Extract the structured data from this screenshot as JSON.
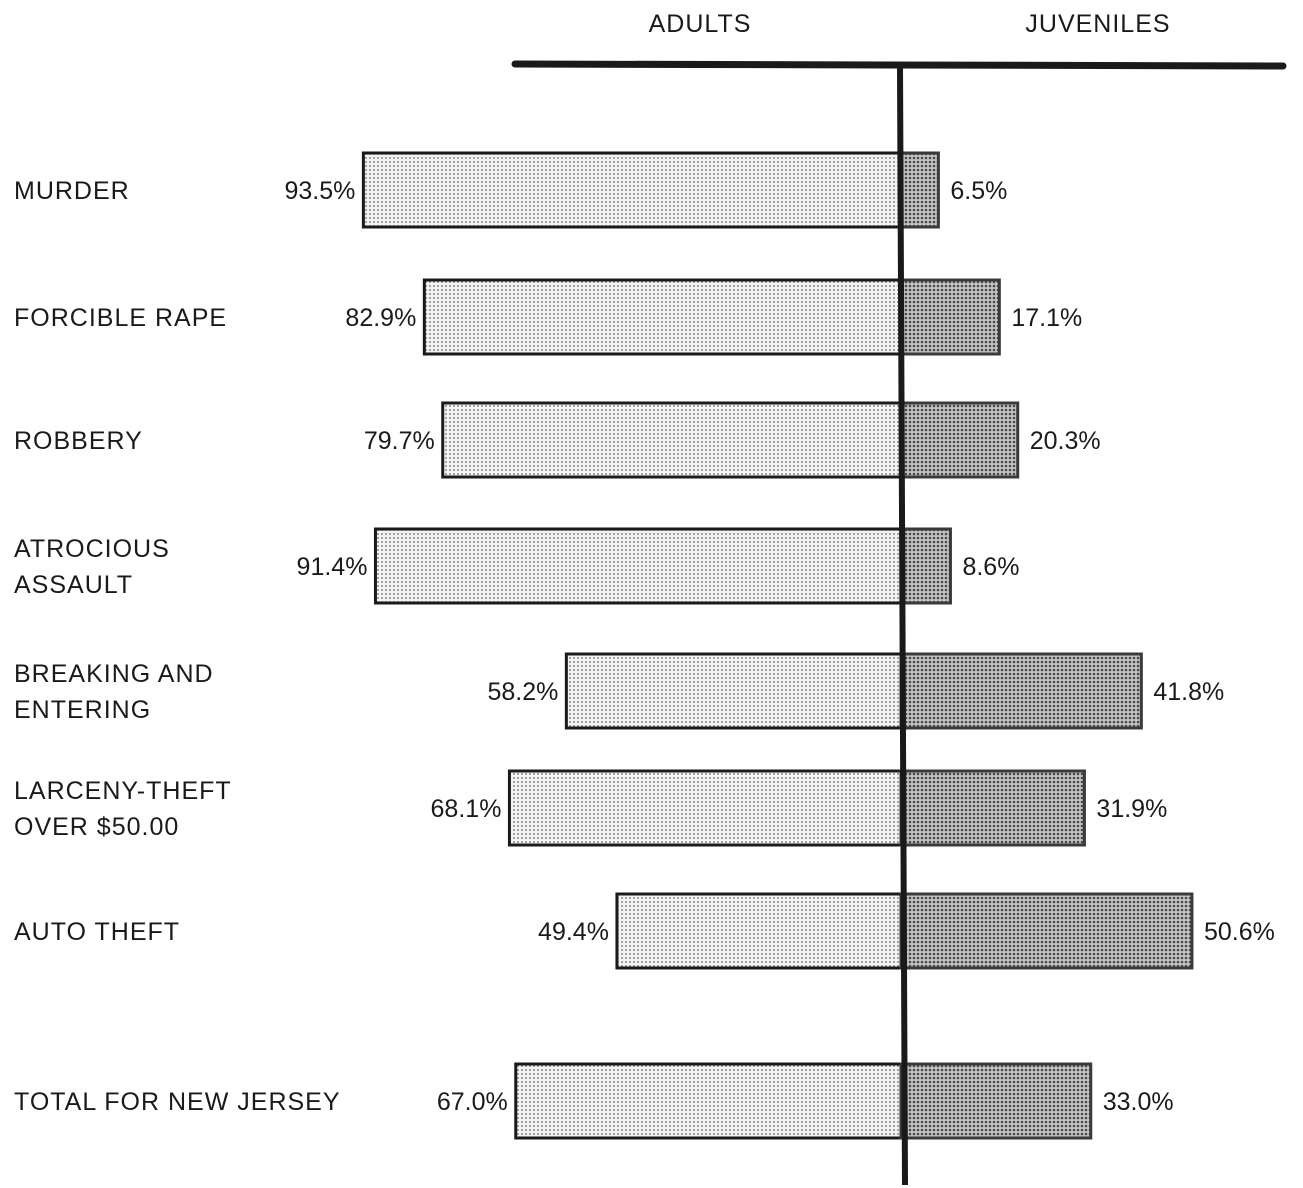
{
  "chart_data": {
    "type": "bar",
    "orientation": "horizontal-diverging",
    "series": [
      {
        "name": "ADULTS",
        "values": [
          93.5,
          82.9,
          79.7,
          91.4,
          58.2,
          68.1,
          49.4,
          67.0
        ]
      },
      {
        "name": "JUVENILES",
        "values": [
          6.5,
          17.1,
          20.3,
          8.6,
          41.8,
          31.9,
          50.6,
          33.0
        ]
      }
    ],
    "categories": [
      [
        "MURDER"
      ],
      [
        "FORCIBLE RAPE"
      ],
      [
        "ROBBERY"
      ],
      [
        "ATROCIOUS",
        "ASSAULT"
      ],
      [
        "BREAKING AND",
        "ENTERING"
      ],
      [
        "LARCENY-THEFT",
        "OVER $50.00"
      ],
      [
        "AUTO THEFT"
      ],
      [
        "TOTAL FOR NEW JERSEY"
      ]
    ],
    "value_labels": {
      "adults": [
        "93.5%",
        "82.9%",
        "79.7%",
        "91.4%",
        "58.2%",
        "68.1%",
        "49.4%",
        "67.0%"
      ],
      "juveniles": [
        "6.5%",
        "17.1%",
        "20.3%",
        "8.6%",
        "41.8%",
        "31.9%",
        "50.6%",
        "33.0%"
      ]
    },
    "unit": "%",
    "xlim": [
      0,
      100
    ],
    "grid": false,
    "legend": "column headers at top"
  },
  "colors": {
    "adults_fill": "#e8e8e8",
    "juveniles_fill": "#a9a9a9",
    "ink": "#1a1a1a"
  }
}
